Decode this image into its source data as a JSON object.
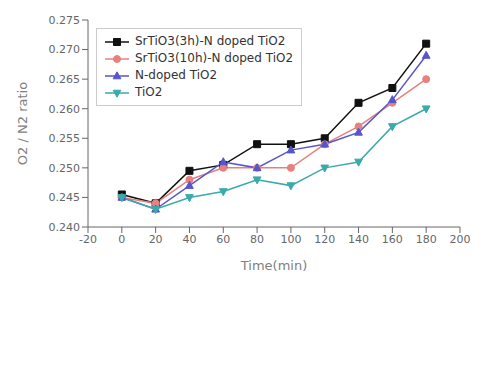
{
  "chart_data": {
    "type": "line",
    "title": "",
    "xlabel": "Time(min)",
    "ylabel": "O2 / N2 ratio",
    "x": [
      0,
      20,
      40,
      60,
      80,
      100,
      120,
      140,
      160,
      180
    ],
    "xlim": [
      -20,
      200
    ],
    "xticks": [
      -20,
      0,
      20,
      40,
      60,
      80,
      100,
      120,
      140,
      160,
      180,
      200
    ],
    "ylim": [
      0.24,
      0.275
    ],
    "yticks": [
      {
        "value": 0.24,
        "label": "0.240"
      },
      0.245,
      {
        "value": 0.25,
        "label": "0.250"
      },
      0.255,
      {
        "value": 0.26,
        "label": "0.260"
      },
      0.265,
      {
        "value": 0.27,
        "label": "0.270"
      },
      0.275
    ],
    "grid": false,
    "legend": "upper left",
    "series": [
      {
        "name": "SrTiO3(3h)-N doped TiO2",
        "color": "#111111",
        "marker": "square",
        "line_style": "solid",
        "values": [
          0.2455,
          0.244,
          0.2495,
          0.2505,
          0.254,
          0.254,
          0.255,
          0.261,
          0.2635,
          0.271
        ]
      },
      {
        "name": "SrTiO3(10h)-N doped TiO2",
        "color": "#E88080",
        "marker": "circle",
        "line_style": "solid",
        "values": [
          0.245,
          0.244,
          0.248,
          0.25,
          0.25,
          0.25,
          0.254,
          0.257,
          0.261,
          0.265
        ]
      },
      {
        "name": "N-doped TiO2",
        "color": "#5555CC",
        "marker": "triangle-up",
        "line_style": "solid",
        "values": [
          0.245,
          0.243,
          0.247,
          0.251,
          0.25,
          0.253,
          0.254,
          0.256,
          0.2615,
          0.269
        ]
      },
      {
        "name": "TiO2",
        "color": "#3BAAAA",
        "marker": "triangle-down",
        "line_style": "solid",
        "values": [
          0.245,
          0.243,
          0.245,
          0.246,
          0.248,
          0.247,
          0.25,
          0.251,
          0.257,
          0.26
        ]
      }
    ]
  }
}
